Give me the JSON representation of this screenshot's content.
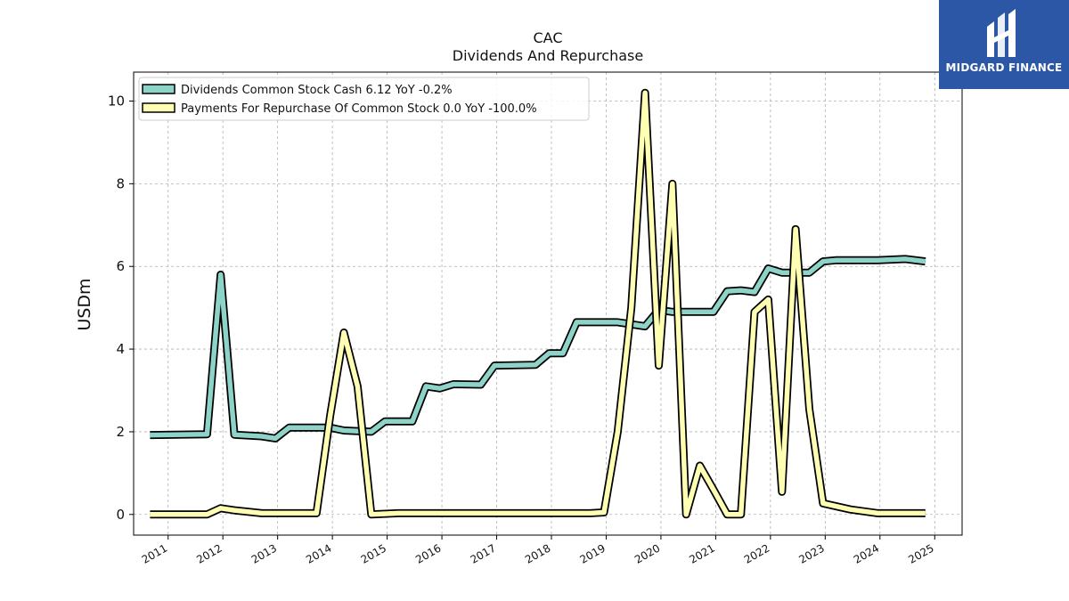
{
  "brand": {
    "name": "MIDGARD FINANCE",
    "logo_icon": "midgard-logo-icon",
    "background": "#2b57a6"
  },
  "chart_data": {
    "type": "line",
    "title": "CAC",
    "subtitle": "Dividends And Repurchase",
    "ylabel": "USDm",
    "xlabel": "",
    "xlim": [
      2010.37,
      2025.5
    ],
    "ylim": [
      -0.5,
      10.7
    ],
    "yticks": [
      0,
      2,
      4,
      6,
      8,
      10
    ],
    "xticks": [
      2011,
      2012,
      2013,
      2014,
      2015,
      2016,
      2017,
      2018,
      2019,
      2020,
      2021,
      2022,
      2023,
      2024,
      2025
    ],
    "grid": true,
    "legend_position": "top-left",
    "series": [
      {
        "name": "Dividends Common Stock Cash  6.12 YoY -0.2%",
        "color": "#8dd3c7",
        "points": [
          [
            2010.67,
            1.92
          ],
          [
            2011.71,
            1.94
          ],
          [
            2011.96,
            5.8
          ],
          [
            2012.21,
            1.93
          ],
          [
            2012.71,
            1.89
          ],
          [
            2012.96,
            1.84
          ],
          [
            2013.21,
            2.1
          ],
          [
            2013.71,
            2.1
          ],
          [
            2013.96,
            2.1
          ],
          [
            2014.21,
            2.03
          ],
          [
            2014.71,
            2.0
          ],
          [
            2014.96,
            2.25
          ],
          [
            2015.46,
            2.25
          ],
          [
            2015.71,
            3.1
          ],
          [
            2015.96,
            3.05
          ],
          [
            2016.21,
            3.15
          ],
          [
            2016.71,
            3.14
          ],
          [
            2016.96,
            3.6
          ],
          [
            2017.71,
            3.62
          ],
          [
            2017.96,
            3.9
          ],
          [
            2018.21,
            3.9
          ],
          [
            2018.46,
            4.65
          ],
          [
            2019.21,
            4.65
          ],
          [
            2019.71,
            4.55
          ],
          [
            2019.96,
            4.95
          ],
          [
            2020.21,
            4.9
          ],
          [
            2020.71,
            4.9
          ],
          [
            2020.96,
            4.9
          ],
          [
            2021.21,
            5.4
          ],
          [
            2021.46,
            5.42
          ],
          [
            2021.71,
            5.38
          ],
          [
            2021.96,
            5.95
          ],
          [
            2022.21,
            5.85
          ],
          [
            2022.46,
            5.85
          ],
          [
            2022.71,
            5.85
          ],
          [
            2022.96,
            6.12
          ],
          [
            2023.21,
            6.15
          ],
          [
            2023.96,
            6.15
          ],
          [
            2024.46,
            6.18
          ],
          [
            2024.83,
            6.12
          ]
        ]
      },
      {
        "name": "Payments For Repurchase Of Common Stock  0.0 YoY -100.0%",
        "color": "#ffffb3",
        "points": [
          [
            2010.67,
            0.0
          ],
          [
            2011.71,
            0.0
          ],
          [
            2011.96,
            0.15
          ],
          [
            2012.21,
            0.1
          ],
          [
            2012.71,
            0.03
          ],
          [
            2013.21,
            0.03
          ],
          [
            2013.71,
            0.03
          ],
          [
            2013.96,
            2.4
          ],
          [
            2014.21,
            4.4
          ],
          [
            2014.46,
            3.1
          ],
          [
            2014.71,
            0.0
          ],
          [
            2015.21,
            0.03
          ],
          [
            2016.21,
            0.03
          ],
          [
            2017.21,
            0.03
          ],
          [
            2018.21,
            0.03
          ],
          [
            2018.71,
            0.03
          ],
          [
            2018.96,
            0.05
          ],
          [
            2019.21,
            2.0
          ],
          [
            2019.46,
            5.0
          ],
          [
            2019.71,
            10.2
          ],
          [
            2019.96,
            3.6
          ],
          [
            2020.21,
            8.0
          ],
          [
            2020.46,
            0.0
          ],
          [
            2020.71,
            1.18
          ],
          [
            2020.96,
            0.6
          ],
          [
            2021.21,
            0.0
          ],
          [
            2021.46,
            0.0
          ],
          [
            2021.71,
            4.9
          ],
          [
            2021.96,
            5.2
          ],
          [
            2022.21,
            0.55
          ],
          [
            2022.46,
            6.9
          ],
          [
            2022.71,
            2.55
          ],
          [
            2022.96,
            0.27
          ],
          [
            2023.46,
            0.12
          ],
          [
            2023.96,
            0.03
          ],
          [
            2024.46,
            0.03
          ],
          [
            2024.83,
            0.03
          ]
        ]
      }
    ]
  }
}
